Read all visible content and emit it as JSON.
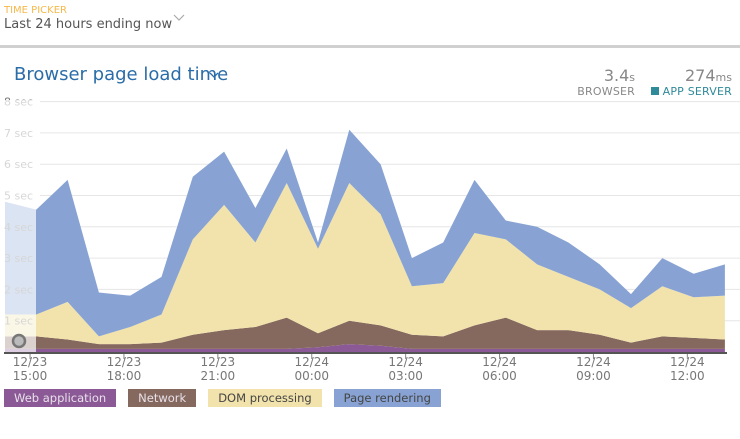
{
  "time_picker": {
    "label": "TIME PICKER",
    "value": "Last 24 hours ending now",
    "icon": "chevron-down-icon"
  },
  "widget": {
    "title": "Browser page load time",
    "icon": "chevron-down-icon"
  },
  "metrics": [
    {
      "value": "3.4",
      "unit": "s",
      "label": "BROWSER"
    },
    {
      "value": "274",
      "unit": "ms",
      "label": "APP SERVER",
      "color": "#2f8a99"
    }
  ],
  "chart_data": {
    "type": "area",
    "stacked": true,
    "ylim": [
      0,
      8
    ],
    "yticks": [
      "8 sec",
      "7 sec",
      "6 sec",
      "5 sec",
      "4 sec",
      "3 sec",
      "2 sec",
      "1 sec"
    ],
    "xticks": [
      {
        "date": "12/23",
        "time": "15:00"
      },
      {
        "date": "12/23",
        "time": "18:00"
      },
      {
        "date": "12/23",
        "time": "21:00"
      },
      {
        "date": "12/24",
        "time": "00:00"
      },
      {
        "date": "12/24",
        "time": "03:00"
      },
      {
        "date": "12/24",
        "time": "06:00"
      },
      {
        "date": "12/24",
        "time": "09:00"
      },
      {
        "date": "12/24",
        "time": "12:00"
      }
    ],
    "x": [
      "12/23 14:12",
      "12/23 15:12",
      "12/23 16:12",
      "12/23 17:12",
      "12/23 18:12",
      "12/23 19:12",
      "12/23 20:12",
      "12/23 21:12",
      "12/23 22:12",
      "12/23 23:12",
      "12/24 00:12",
      "12/24 01:12",
      "12/24 02:12",
      "12/24 03:12",
      "12/24 04:12",
      "12/24 05:12",
      "12/24 06:12",
      "12/24 07:12",
      "12/24 08:12",
      "12/24 09:12",
      "12/24 10:12",
      "12/24 11:12",
      "12/24 12:12",
      "12/24 13:12"
    ],
    "series": [
      {
        "name": "Web application",
        "color": "#8b5a96",
        "values": [
          0.1,
          0.1,
          0.1,
          0.1,
          0.1,
          0.1,
          0.1,
          0.1,
          0.1,
          0.1,
          0.15,
          0.25,
          0.2,
          0.1,
          0.1,
          0.1,
          0.1,
          0.1,
          0.1,
          0.1,
          0.1,
          0.1,
          0.1,
          0.1
        ]
      },
      {
        "name": "Network",
        "color": "#86695e",
        "values": [
          0.4,
          0.4,
          0.3,
          0.15,
          0.15,
          0.2,
          0.45,
          0.6,
          0.7,
          1.0,
          0.45,
          0.75,
          0.65,
          0.45,
          0.4,
          0.75,
          1.0,
          0.6,
          0.6,
          0.45,
          0.2,
          0.4,
          0.35,
          0.3
        ]
      },
      {
        "name": "DOM processing",
        "color": "#f1e3ab",
        "values": [
          0.7,
          0.7,
          1.2,
          0.25,
          0.55,
          0.9,
          3.05,
          4.0,
          2.7,
          4.3,
          2.7,
          4.4,
          3.55,
          1.55,
          1.7,
          2.95,
          2.5,
          2.1,
          1.7,
          1.45,
          1.1,
          1.6,
          1.3,
          1.4
        ]
      },
      {
        "name": "Page rendering",
        "color": "#88a3d3",
        "values": [
          3.6,
          3.35,
          3.9,
          1.4,
          1.0,
          1.2,
          2.0,
          1.7,
          1.1,
          1.1,
          0.2,
          1.7,
          1.6,
          0.9,
          1.3,
          1.7,
          0.6,
          1.2,
          1.1,
          0.8,
          0.45,
          0.9,
          0.75,
          1.0
        ]
      }
    ],
    "grid": true,
    "legend_placement": "bottom-left"
  }
}
